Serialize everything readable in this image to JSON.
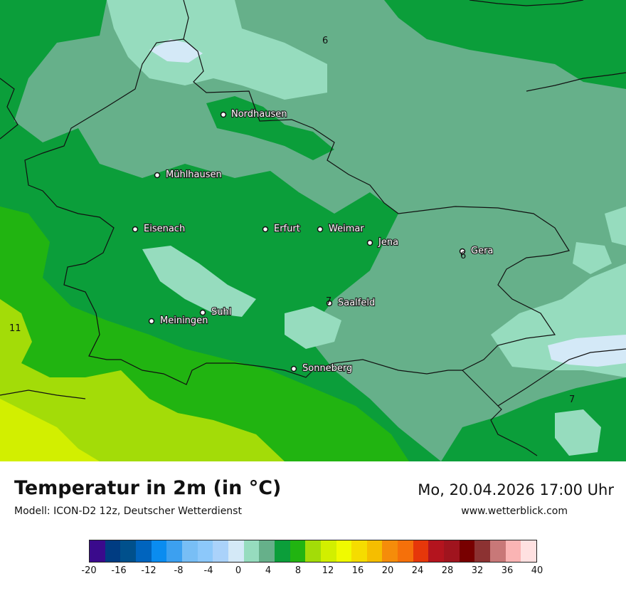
{
  "header": {
    "title": "Temperatur in 2m (in °C)",
    "model": "Modell: ICON-D2 12z, Deutscher Wetterdienst",
    "datetime": "Mo, 20.04.2026 17:00 Uhr",
    "website": "www.wetterblick.com"
  },
  "cities": [
    {
      "name": "Nordhausen"
    },
    {
      "name": "Mühlhausen"
    },
    {
      "name": "Eisenach"
    },
    {
      "name": "Erfurt"
    },
    {
      "name": "Weimar"
    },
    {
      "name": "Jena"
    },
    {
      "name": "Gera"
    },
    {
      "name": "Saalfeld"
    },
    {
      "name": "Suhl"
    },
    {
      "name": "Meiningen"
    },
    {
      "name": "Sonneberg"
    }
  ],
  "isoline_labels": [
    "6",
    "6",
    "7",
    "7",
    "11"
  ],
  "colors": {
    "t0_2": "#d4e9f7",
    "t2_4": "#96dcbe",
    "t4_6": "#66b08a",
    "t6_8": "#0b9e3a",
    "t8_10": "#21b411",
    "t10_12": "#a3dc08",
    "t12_14": "#d2ef00",
    "border": "#111111"
  },
  "legend": {
    "colors": [
      "#3a0a8c",
      "#003c82",
      "#00508c",
      "#0064be",
      "#0a8cf0",
      "#3ca0f0",
      "#78bef5",
      "#8cc8fa",
      "#aad2fa",
      "#d4e9f7",
      "#96dcbe",
      "#66b08a",
      "#0b9e3a",
      "#21b411",
      "#a3dc08",
      "#d2ef00",
      "#f0fa00",
      "#f5dc00",
      "#f5be00",
      "#f58c0a",
      "#f5700a",
      "#e6370a",
      "#b4141e",
      "#a0141e",
      "#780000",
      "#8c3232",
      "#c87878",
      "#fab4b4",
      "#ffe1e1"
    ],
    "ticks": [
      "-20",
      "-16",
      "-12",
      "-8",
      "-4",
      "0",
      "4",
      "8",
      "12",
      "16",
      "20",
      "24",
      "28",
      "32",
      "36",
      "40"
    ]
  }
}
